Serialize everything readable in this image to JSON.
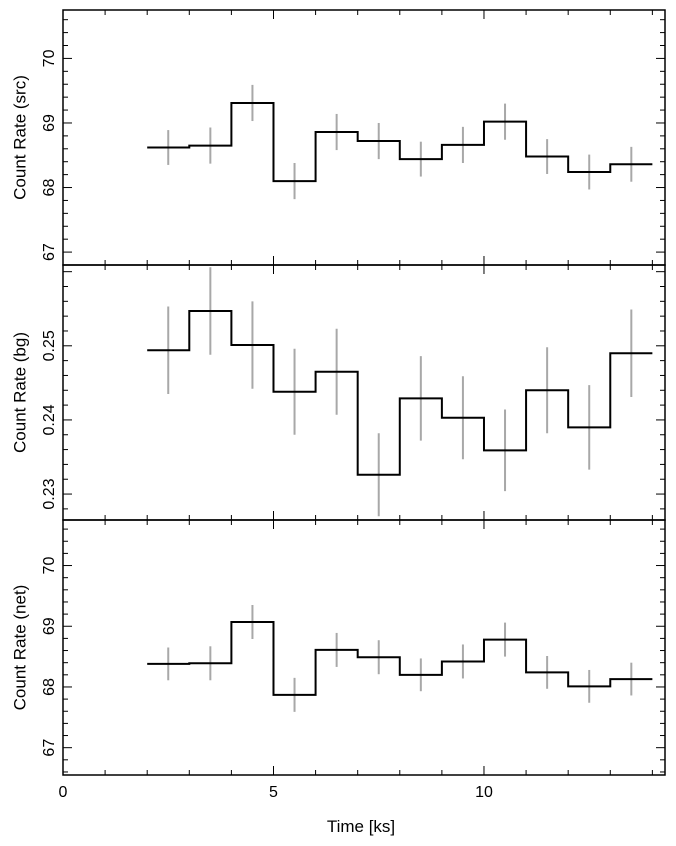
{
  "chart_data": {
    "type": "line",
    "style": "step",
    "shared_x": {
      "label": "Time [ks]",
      "lim": [
        0,
        14.3
      ],
      "ticks": [
        0,
        5,
        10
      ],
      "tick_labels": [
        "0",
        "5",
        "10"
      ]
    },
    "bins": {
      "edges": [
        2,
        3,
        4,
        5,
        6,
        7,
        8,
        9,
        10,
        11,
        12,
        13,
        14
      ],
      "centers": [
        2.5,
        3.5,
        4.5,
        5.5,
        6.5,
        7.5,
        8.5,
        9.5,
        10.5,
        11.5,
        12.5,
        13.5
      ]
    },
    "panels": [
      {
        "id": "src",
        "ylabel": "Count Rate (src)",
        "ylim": [
          66.8,
          70.75
        ],
        "yticks": [
          67,
          68,
          69,
          70
        ],
        "ytick_labels": [
          "67",
          "68",
          "69",
          "70"
        ],
        "values": [
          68.62,
          68.65,
          69.31,
          68.1,
          68.86,
          68.72,
          68.44,
          68.66,
          69.02,
          68.48,
          68.24,
          68.36
        ],
        "errors": [
          0.27,
          0.28,
          0.28,
          0.28,
          0.28,
          0.28,
          0.27,
          0.28,
          0.28,
          0.27,
          0.27,
          0.27
        ]
      },
      {
        "id": "bg",
        "ylabel": "Count Rate (bg)",
        "ylim": [
          0.2265,
          0.2609
        ],
        "yticks": [
          0.23,
          0.24,
          0.25
        ],
        "ytick_labels": [
          "0.23",
          "0.24",
          "0.25"
        ],
        "values": [
          0.2494,
          0.2547,
          0.2501,
          0.2438,
          0.2465,
          0.2326,
          0.2429,
          0.2403,
          0.2359,
          0.244,
          0.239,
          0.249
        ],
        "errors": [
          0.0059,
          0.0059,
          0.0059,
          0.0058,
          0.0058,
          0.0056,
          0.0057,
          0.0056,
          0.0055,
          0.0058,
          0.0057,
          0.0059
        ]
      },
      {
        "id": "net",
        "ylabel": "Count Rate (net)",
        "ylim": [
          66.55,
          70.75
        ],
        "yticks": [
          67,
          68,
          69,
          70
        ],
        "ytick_labels": [
          "67",
          "68",
          "69",
          "70"
        ],
        "values": [
          68.38,
          68.39,
          69.07,
          67.87,
          68.61,
          68.49,
          68.2,
          68.42,
          68.78,
          68.24,
          68.01,
          68.13
        ],
        "errors": [
          0.27,
          0.28,
          0.28,
          0.28,
          0.28,
          0.28,
          0.27,
          0.28,
          0.28,
          0.27,
          0.27,
          0.27
        ]
      }
    ],
    "colors": {
      "step_line": "#000000",
      "error_bar": "#a8a8a8",
      "frame": "#000000"
    }
  }
}
